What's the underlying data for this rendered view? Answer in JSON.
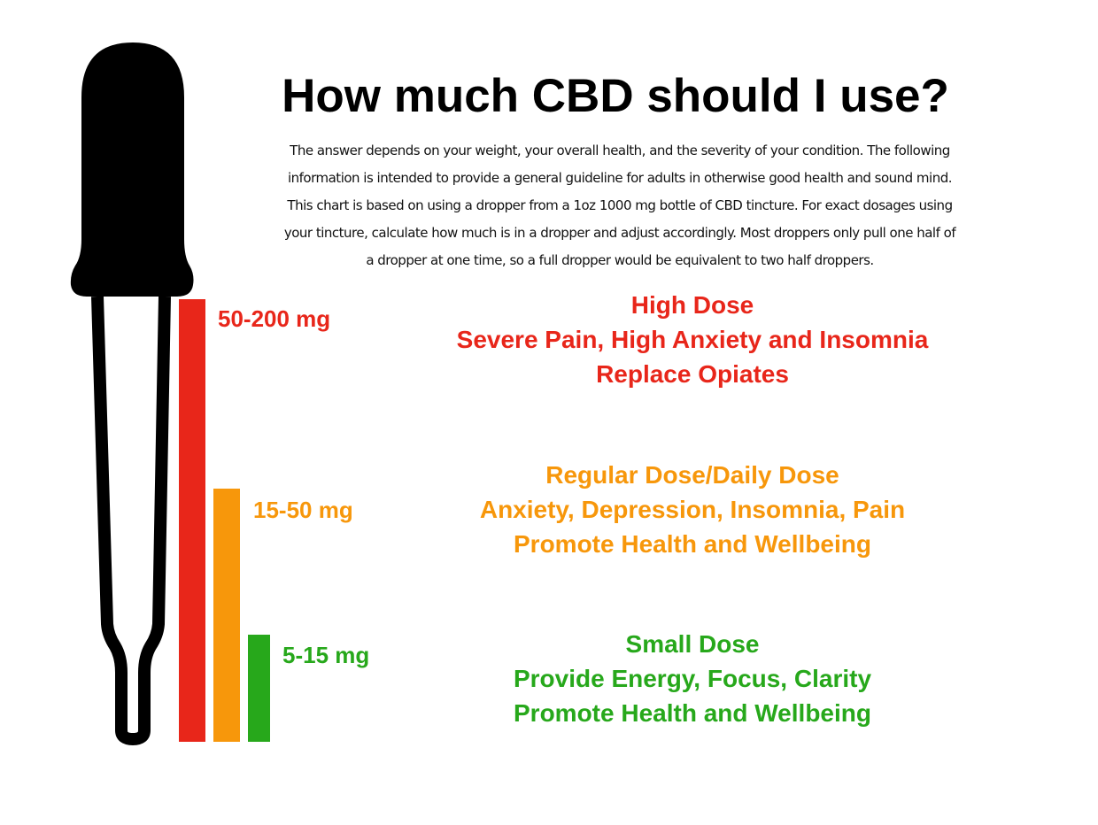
{
  "title": "How much CBD should I use?",
  "intro": [
    "The answer depends on your weight, your overall health, and the severity of your condition.  The following",
    "information is intended to provide a general guideline for adults in otherwise good health and sound mind.",
    "This chart is based on using a dropper from a 1oz 1000 mg bottle of CBD tincture. For exact dosages using",
    "your tincture, calculate how much is in a dropper and adjust accordingly. Most droppers only  pull one half of",
    "a dropper at one time, so a full dropper would be equivalent to two half droppers."
  ],
  "colors": {
    "high": "#e8261a",
    "regular": "#f7970b",
    "small": "#27a81b",
    "dropper": "#000000"
  },
  "doses": [
    {
      "range": "50-200 mg",
      "lines": [
        "High Dose",
        "Severe Pain, High Anxiety and Insomnia",
        "Replace Opiates"
      ],
      "level": 1.0
    },
    {
      "range": "15-50 mg",
      "lines": [
        "Regular Dose/Daily Dose",
        "Anxiety, Depression, Insomnia, Pain",
        "Promote Health and Wellbeing"
      ],
      "level": 0.57
    },
    {
      "range": "5-15 mg",
      "lines": [
        "Small Dose",
        "Provide Energy, Focus, Clarity",
        "Promote Health and Wellbeing"
      ],
      "level": 0.24
    }
  ]
}
